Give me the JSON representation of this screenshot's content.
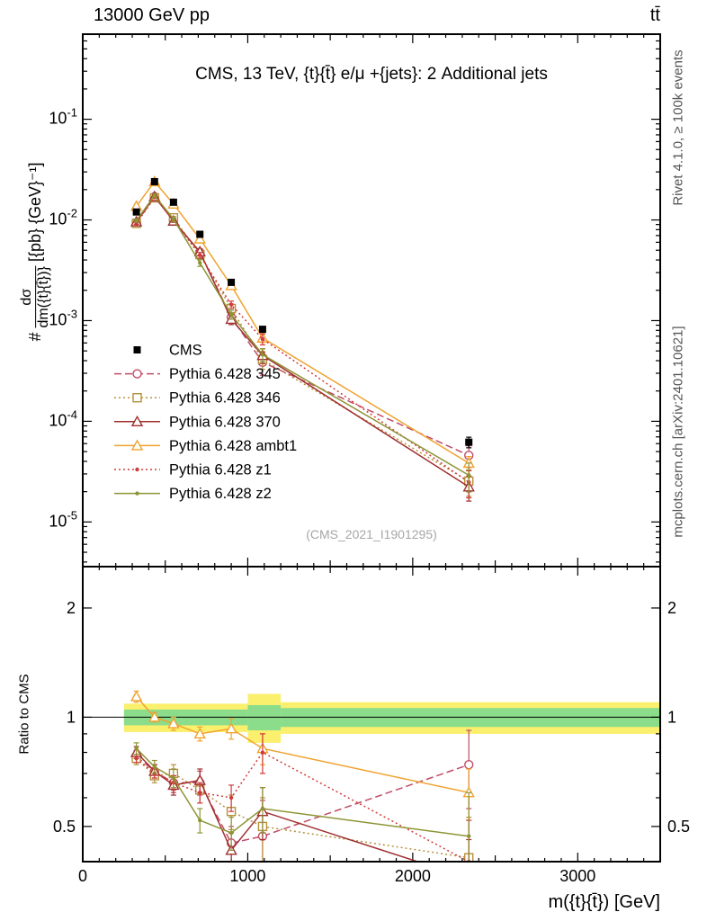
{
  "header": {
    "left": "13000 GeV pp",
    "right": "tt̄"
  },
  "side": {
    "top": "Rivet 4.1.0, ≥ 100k events",
    "bottom": "mcplots.cern.ch [arXiv:2401.10621]"
  },
  "chart_data": {
    "type": "line",
    "title": "CMS, 13 TeV, {t}{t̄} e/μ +{jets}: 2 Additional jets",
    "watermark": "(CMS_2021_I1901295)",
    "xlabel": "m({t}{t̄}) [GeV]",
    "ylabel_main": {
      "prefix": "#",
      "numerator": "dσ",
      "denominator": "dm({t}{t̄})}",
      "units": "[{pb} {GeV}⁻¹]"
    },
    "ylabel_ratio": "Ratio to CMS",
    "x_range": [
      0,
      3500
    ],
    "x_ticks": [
      0,
      1000,
      2000,
      3000
    ],
    "y_main_range": [
      3.6e-06,
      0.7
    ],
    "y_main_tick_exponents": [
      -1,
      -2,
      -3,
      -4,
      -5
    ],
    "y_ratio_range": [
      0.4,
      2.6
    ],
    "y_ratio_ticks": [
      0.5,
      1,
      2
    ],
    "legend_position": "inside-left-middle",
    "grid": false,
    "x": [
      325,
      435,
      550,
      710,
      900,
      1090,
      2340
    ],
    "cms": {
      "label": "CMS",
      "color": "#000000",
      "values": [
        0.012,
        0.024,
        0.015,
        0.0072,
        0.0024,
        0.00082,
        6.2e-05
      ],
      "frac_err": [
        0.04,
        0.03,
        0.03,
        0.04,
        0.05,
        0.06,
        0.12
      ]
    },
    "series": [
      {
        "label": "Pythia 6.428 345",
        "color": "#c14b66",
        "line": "dashed",
        "marker": "circle-open",
        "ratio": [
          0.78,
          0.71,
          0.66,
          0.66,
          0.45,
          0.47,
          0.74
        ],
        "ratio_err": [
          0.03,
          0.03,
          0.04,
          0.05,
          0.05,
          0.12,
          0.18
        ]
      },
      {
        "label": "Pythia 6.428 346",
        "color": "#b5913c",
        "line": "dotted",
        "marker": "square-open",
        "ratio": [
          0.77,
          0.69,
          0.7,
          0.63,
          0.55,
          0.5,
          0.41
        ],
        "ratio_err": [
          0.03,
          0.03,
          0.04,
          0.05,
          0.06,
          0.1,
          0.12
        ]
      },
      {
        "label": "Pythia 6.428 370",
        "color": "#a02f2f",
        "line": "solid",
        "marker": "triangle-open",
        "ratio": [
          0.8,
          0.71,
          0.65,
          0.67,
          0.43,
          0.55,
          0.36
        ],
        "ratio_err": [
          0.03,
          0.03,
          0.04,
          0.05,
          0.05,
          0.09,
          0.1
        ]
      },
      {
        "label": "Pythia 6.428 ambt1",
        "color": "#f0a22e",
        "line": "solid",
        "marker": "triangle-open",
        "ratio": [
          1.14,
          1.0,
          0.96,
          0.9,
          0.93,
          0.82,
          0.62
        ],
        "ratio_err": [
          0.04,
          0.03,
          0.04,
          0.04,
          0.06,
          0.08,
          0.1
        ]
      },
      {
        "label": "Pythia 6.428 z1",
        "color": "#d03a3a",
        "line": "dotted",
        "marker": "dot",
        "ratio": [
          0.77,
          0.7,
          0.66,
          0.62,
          0.6,
          0.8,
          0.4
        ],
        "ratio_err": [
          0.02,
          0.02,
          0.03,
          0.04,
          0.05,
          0.1,
          0.12
        ]
      },
      {
        "label": "Pythia 6.428 z2",
        "color": "#8e9434",
        "line": "solid",
        "marker": "dot",
        "ratio": [
          0.82,
          0.73,
          0.68,
          0.52,
          0.48,
          0.56,
          0.47
        ],
        "ratio_err": [
          0.03,
          0.03,
          0.04,
          0.04,
          0.05,
          0.08,
          0.15
        ]
      }
    ],
    "bands": [
      {
        "x0": 250,
        "x1": 1000,
        "yellow": [
          0.91,
          1.09
        ],
        "green": [
          0.95,
          1.05
        ]
      },
      {
        "x0": 1000,
        "x1": 1200,
        "yellow": [
          0.85,
          1.16
        ],
        "green": [
          0.92,
          1.08
        ]
      },
      {
        "x0": 1200,
        "x1": 3500,
        "yellow": [
          0.9,
          1.1
        ],
        "green": [
          0.94,
          1.06
        ]
      }
    ],
    "band_colors": {
      "yellow": "#fbf06d",
      "green": "#8bdd8b"
    }
  }
}
